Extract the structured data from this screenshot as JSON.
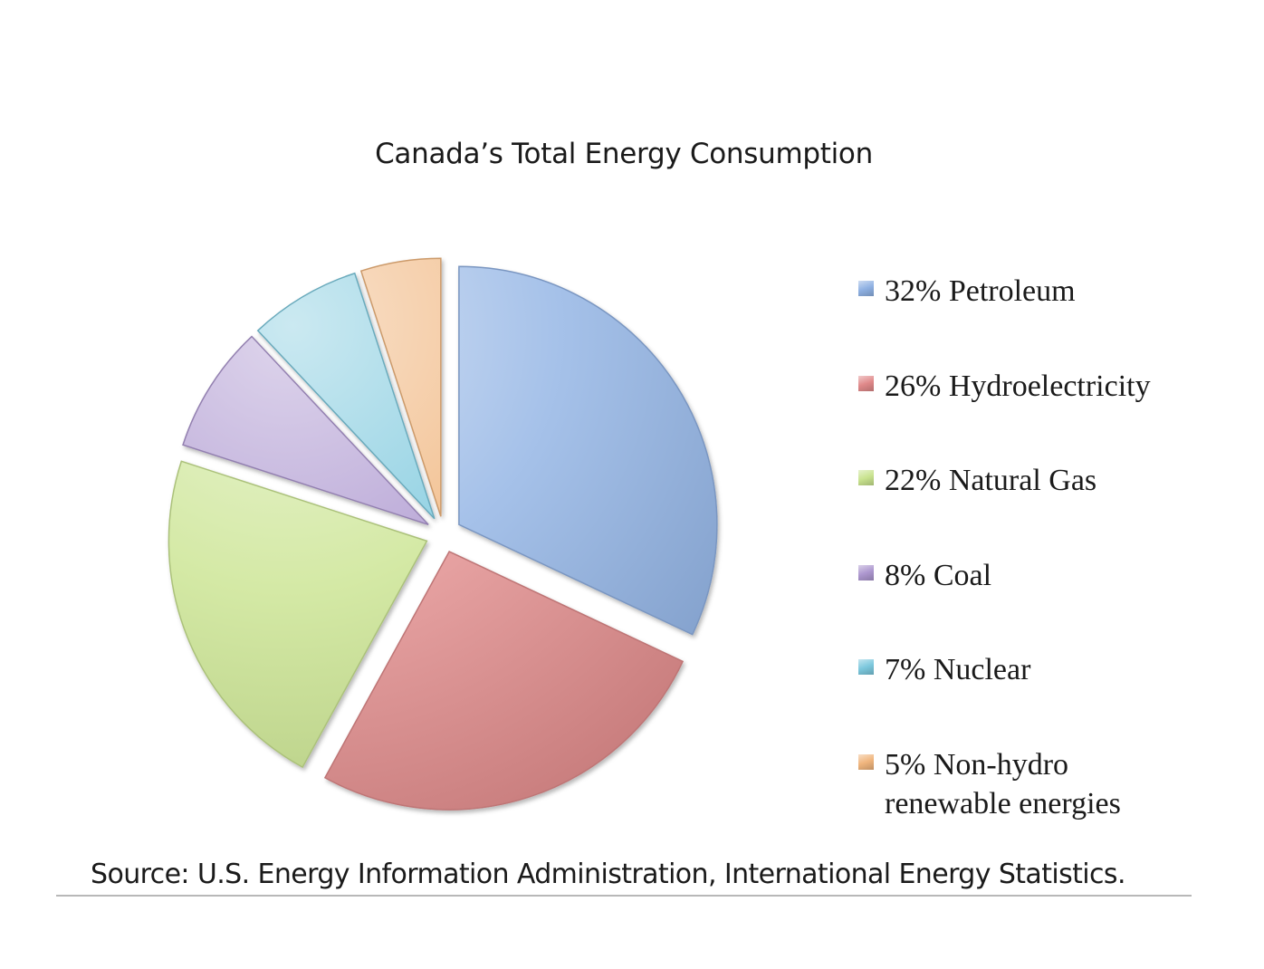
{
  "chart_data": {
    "type": "pie",
    "title": "Canada’s Total Energy Consumption",
    "exploded": true,
    "legend_position": "right",
    "slices": [
      {
        "label": "32% Petroleum",
        "value": 32,
        "color": "#8fb1e3"
      },
      {
        "label": "26% Hydroelectricity",
        "value": 26,
        "color": "#e0898a"
      },
      {
        "label": "22% Natural Gas",
        "value": 22,
        "color": "#c9e38f"
      },
      {
        "label": "8% Coal",
        "value": 8,
        "color": "#ad97cf"
      },
      {
        "label": "7% Nuclear",
        "value": 7,
        "color": "#7cc8dd"
      },
      {
        "label": "5% Non-hydro\nrenewable energies",
        "value": 5,
        "color": "#f0b57d"
      }
    ]
  },
  "source": "Source: U.S. Energy Information Administration, International Energy Statistics."
}
